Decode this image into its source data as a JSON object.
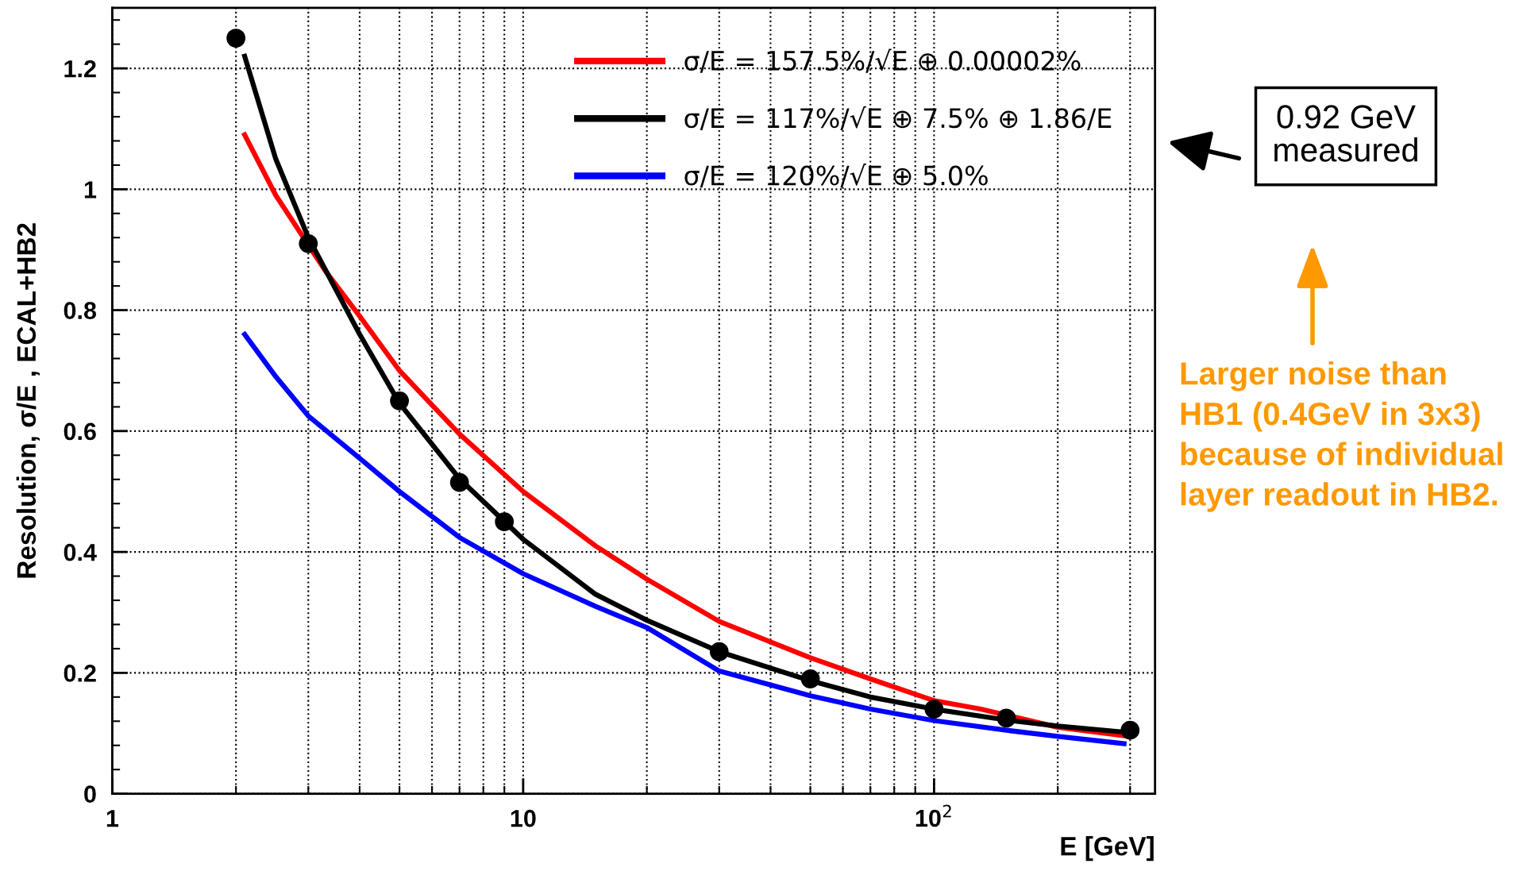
{
  "chart_data": {
    "type": "line",
    "xlabel": "E [GeV]",
    "ylabel": "Resolution, σ/E , ECAL+HB2",
    "log": "x",
    "xlim": [
      1,
      345
    ],
    "ylim": [
      0,
      1.3
    ],
    "xticks": [
      1,
      10,
      {
        "value": 100,
        "label": "10$^{2}$"
      }
    ],
    "yticks": [
      0,
      0.2,
      0.4,
      0.6,
      0.8,
      1,
      1.2
    ],
    "grid": true,
    "legend": "top right",
    "series": [
      {
        "name": "σ/E = 157.5%/√E ⊕ 0.00002%",
        "color": "#ff0000",
        "marker": "none",
        "x": [
          2.1,
          2.5,
          3.3,
          4,
          5,
          7,
          10,
          15,
          20,
          30,
          50,
          70,
          100,
          130,
          200,
          290
        ],
        "values": [
          1.09,
          0.99,
          0.865,
          0.79,
          0.7,
          0.595,
          0.5,
          0.41,
          0.355,
          0.285,
          0.225,
          0.19,
          0.154,
          0.14,
          0.11,
          0.096
        ]
      },
      {
        "name": "σ/E = 117%/√E ⊕ 7.5% ⊕ 1.86/E",
        "color": "#000000",
        "marker": "none",
        "x": [
          2.1,
          2.5,
          3,
          4,
          5,
          7,
          10,
          15,
          20,
          30,
          50,
          70,
          100,
          150,
          200,
          290
        ],
        "values": [
          1.22,
          1.05,
          0.92,
          0.76,
          0.646,
          0.521,
          0.421,
          0.33,
          0.287,
          0.235,
          0.187,
          0.16,
          0.14,
          0.122,
          0.112,
          0.102
        ]
      },
      {
        "name": "σ/E = 120%/√E ⊕ 5.0%",
        "color": "#0000ff",
        "marker": "none",
        "x": [
          2.1,
          2.5,
          3,
          4,
          5,
          7,
          10,
          15,
          20,
          30,
          50,
          70,
          100,
          150,
          200,
          290
        ],
        "values": [
          0.76,
          0.69,
          0.625,
          0.555,
          0.5,
          0.424,
          0.364,
          0.31,
          0.275,
          0.203,
          0.162,
          0.14,
          0.121,
          0.105,
          0.095,
          0.083
        ]
      },
      {
        "type": "scatter",
        "color": "#000000",
        "marker": "circle",
        "x": [
          2,
          3,
          5,
          7,
          9,
          30,
          50,
          100,
          150,
          300
        ],
        "values": [
          1.25,
          0.91,
          0.65,
          0.515,
          0.45,
          0.235,
          0.19,
          0.14,
          0.125,
          0.105
        ]
      }
    ],
    "annotations": [
      "0.92 GeV\nmeasured",
      "Larger noise than\nHB1 (0.4GeV in 3x3)\nbecause of individual\nlayer readout in HB2."
    ]
  }
}
